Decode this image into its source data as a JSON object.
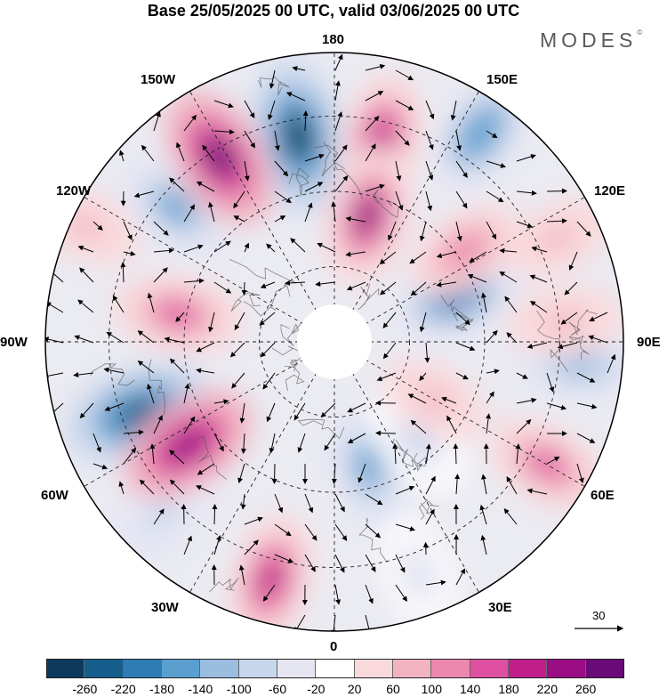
{
  "title": "Base 25/05/2025 00 UTC, valid 03/06/2025 00 UTC",
  "logo": "MODES",
  "logo_mark": "©",
  "longitude_labels": {
    "top": "180",
    "bottom": "0",
    "left": "90W",
    "right": "90E",
    "upper_left_1": "150W",
    "upper_left_2": "120W",
    "lower_left_1": "60W",
    "lower_left_2": "30W",
    "upper_right_1": "150E",
    "upper_right_2": "120E",
    "lower_right_1": "60E",
    "lower_right_2": "30E"
  },
  "reference_vector": "30",
  "colorbar": {
    "colors": [
      "#0d3a5c",
      "#155e8c",
      "#2d7cb5",
      "#5b9fcf",
      "#9bbde0",
      "#c8d6ec",
      "#e6e6f3",
      "#ffffff",
      "#f9d9dc",
      "#f2b3c1",
      "#ec87ae",
      "#df4fa0",
      "#c11e8c",
      "#9a0d84",
      "#6a0a78"
    ],
    "ticks": [
      "-260",
      "-220",
      "-180",
      "-140",
      "-100",
      "-60",
      "-20",
      "20",
      "60",
      "100",
      "140",
      "180",
      "220",
      "260"
    ]
  },
  "anomaly_blobs": [
    {
      "value": -280,
      "lon": -170,
      "r": 0.72
    },
    {
      "value": -260,
      "lon": -70,
      "r": 0.72
    },
    {
      "value": -160,
      "lon": -130,
      "r": 0.72
    },
    {
      "value": -180,
      "lon": 145,
      "r": 0.88
    },
    {
      "value": -200,
      "lon": 110,
      "r": 0.45
    },
    {
      "value": -140,
      "lon": 85,
      "r": 0.85
    },
    {
      "value": -160,
      "lon": 15,
      "r": 0.45
    },
    {
      "value": -100,
      "lon": -45,
      "r": 0.85
    },
    {
      "value": -80,
      "lon": 40,
      "r": 0.45
    },
    {
      "value": -60,
      "lon": 20,
      "r": 0.85
    },
    {
      "value": 260,
      "lon": -148,
      "r": 0.75
    },
    {
      "value": 180,
      "lon": 167,
      "r": 0.72
    },
    {
      "value": 220,
      "lon": 165,
      "r": 0.45
    },
    {
      "value": 160,
      "lon": -100,
      "r": 0.55
    },
    {
      "value": 240,
      "lon": -55,
      "r": 0.62
    },
    {
      "value": 180,
      "lon": -15,
      "r": 0.85
    },
    {
      "value": 140,
      "lon": 60,
      "r": 0.85
    },
    {
      "value": 100,
      "lon": 125,
      "r": 0.55
    },
    {
      "value": 80,
      "lon": 95,
      "r": 0.8
    },
    {
      "value": 60,
      "lon": 115,
      "r": 0.85
    },
    {
      "value": 60,
      "lon": -115,
      "r": 0.95
    },
    {
      "value": 60,
      "lon": 60,
      "r": 0.4
    }
  ]
}
